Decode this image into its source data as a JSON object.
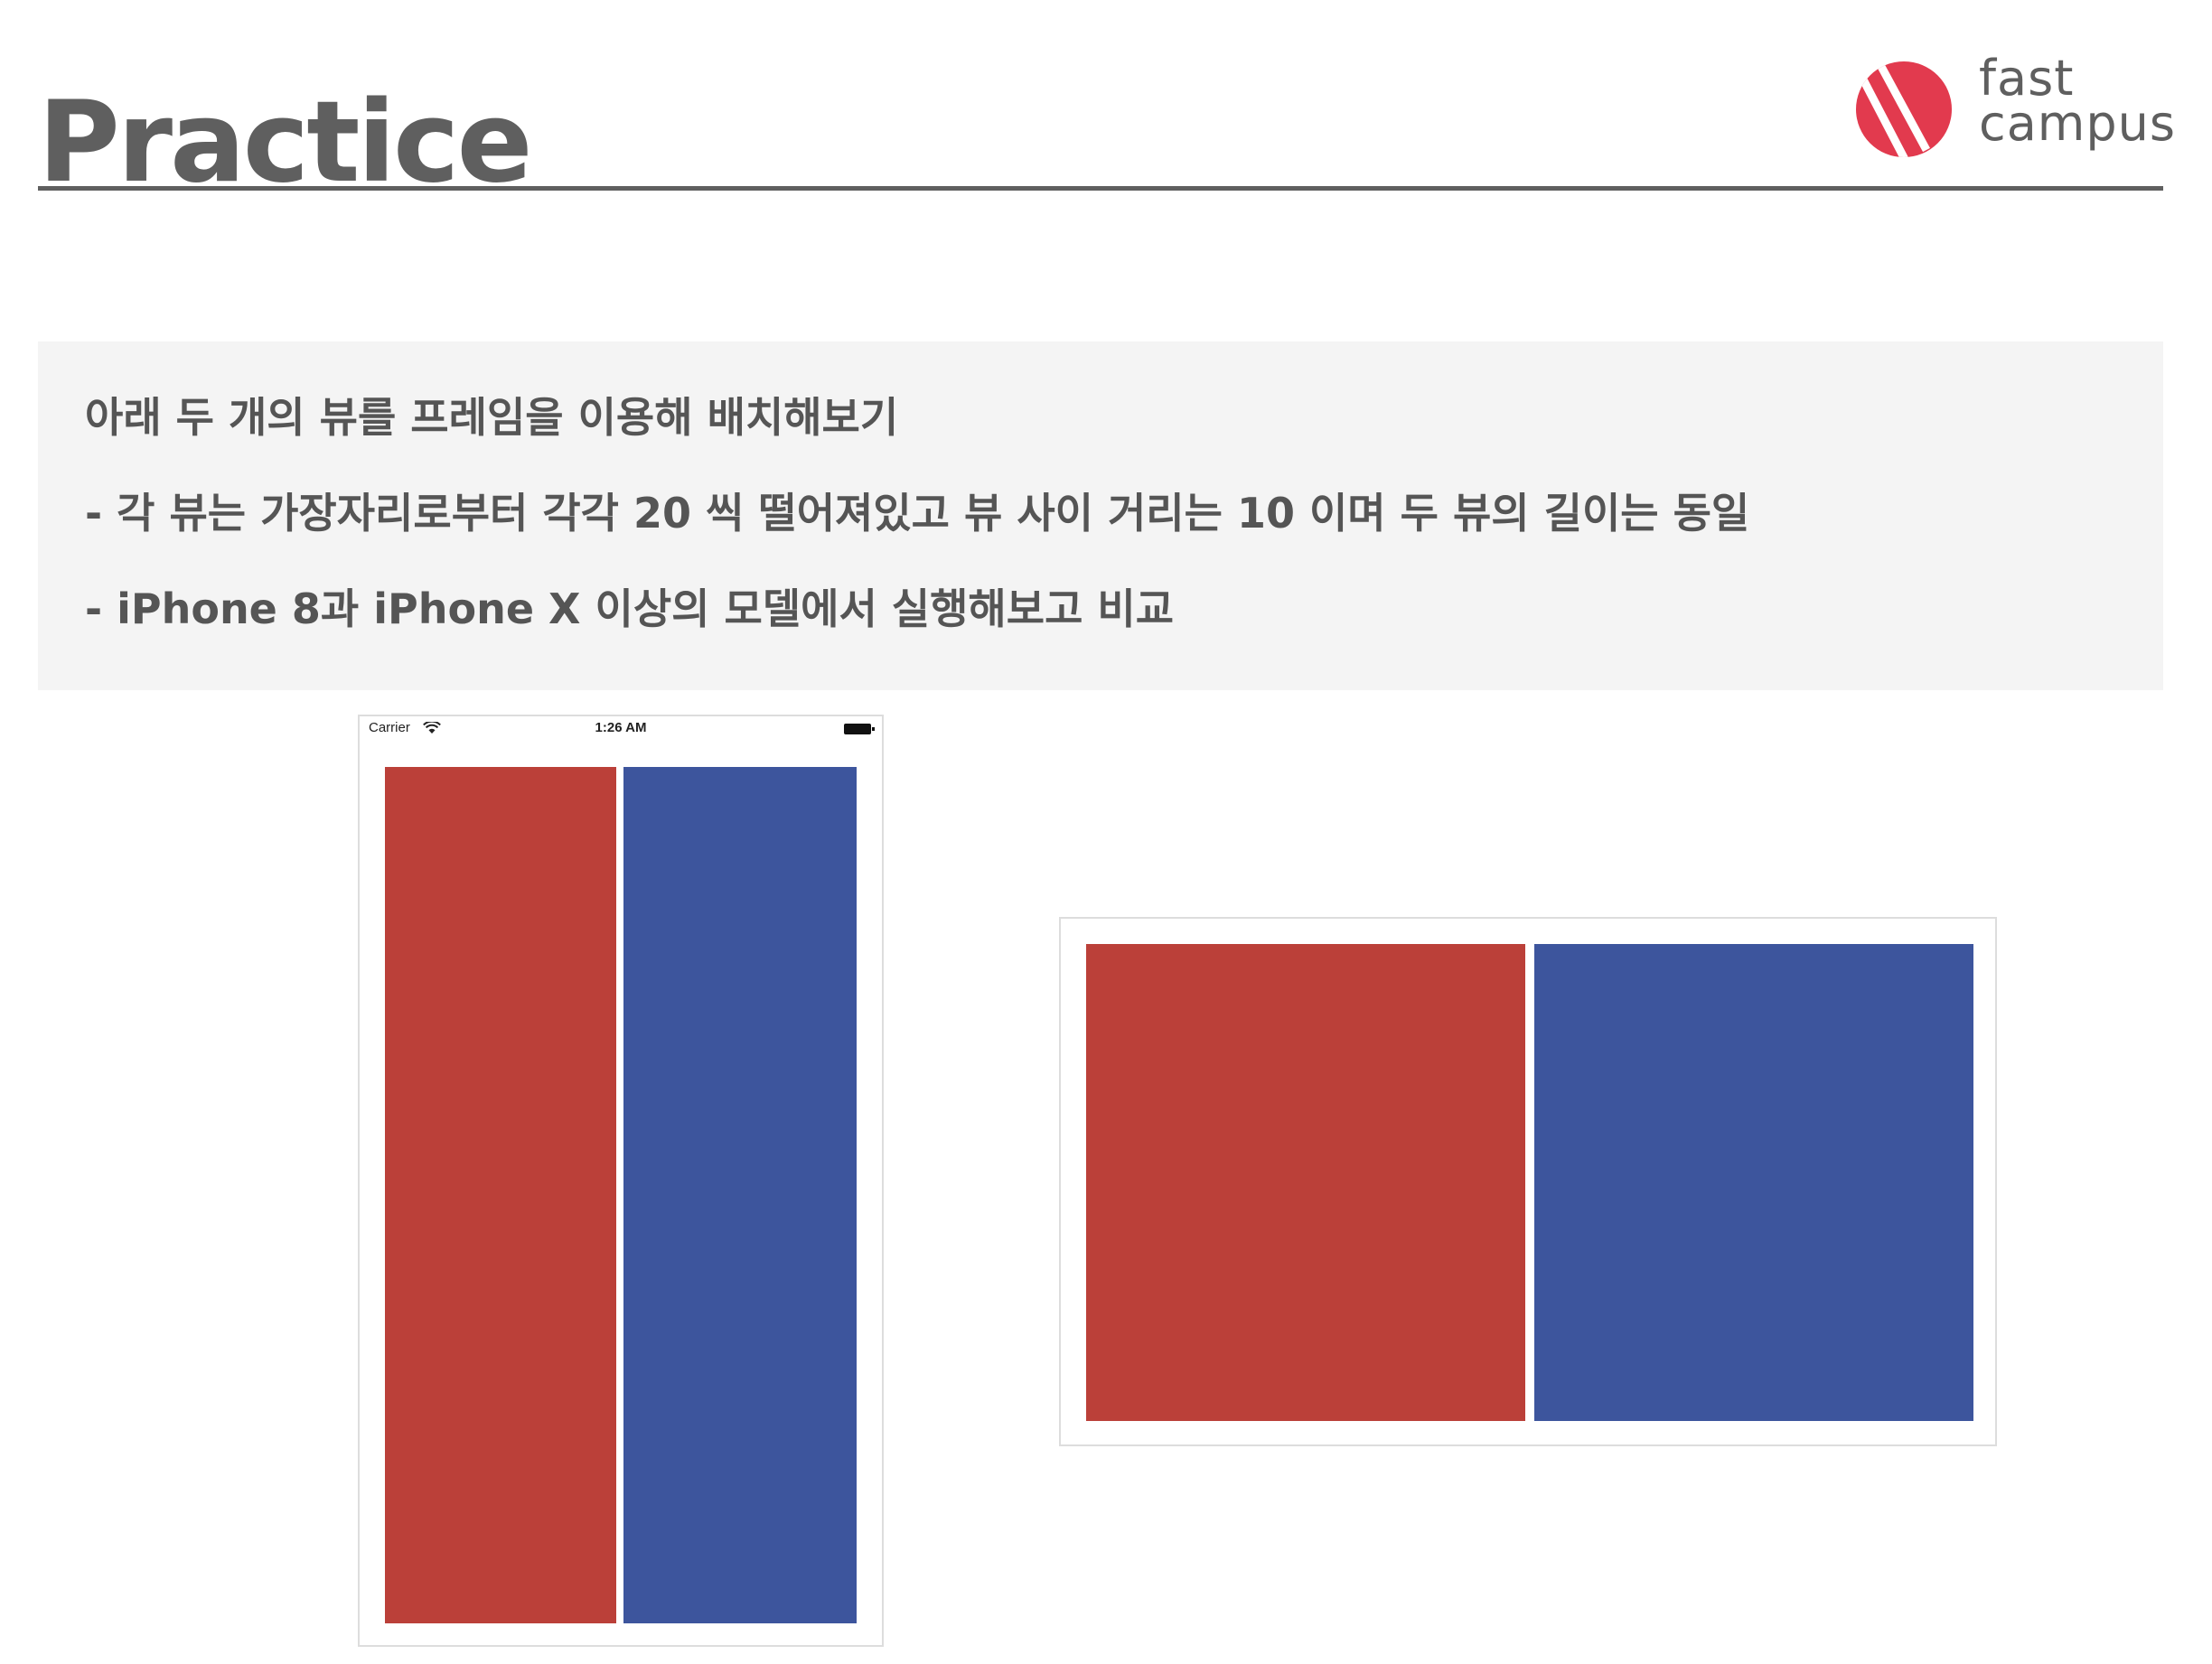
{
  "header": {
    "title": "Practice"
  },
  "logo": {
    "line1": "fast",
    "line2": "campus",
    "brand_color": "#e23a4e"
  },
  "task": {
    "lines": [
      "아래 두 개의 뷰를 프레임을 이용해 배치해보기",
      "- 각 뷰는 가장자리로부터 각각 20 씩 떨어져있고 뷰 사이 거리는 10 이며 두 뷰의 길이는 동일",
      "- iPhone 8과  iPhone X 이상의 모델에서 실행해보고 비교"
    ]
  },
  "portrait_mockup": {
    "status_bar": {
      "carrier": "Carrier",
      "time": "1:26 AM"
    },
    "left_view_color": "#bb4039",
    "right_view_color": "#3d559d"
  },
  "landscape_mockup": {
    "left_view_color": "#bb4039",
    "right_view_color": "#3d559d"
  }
}
